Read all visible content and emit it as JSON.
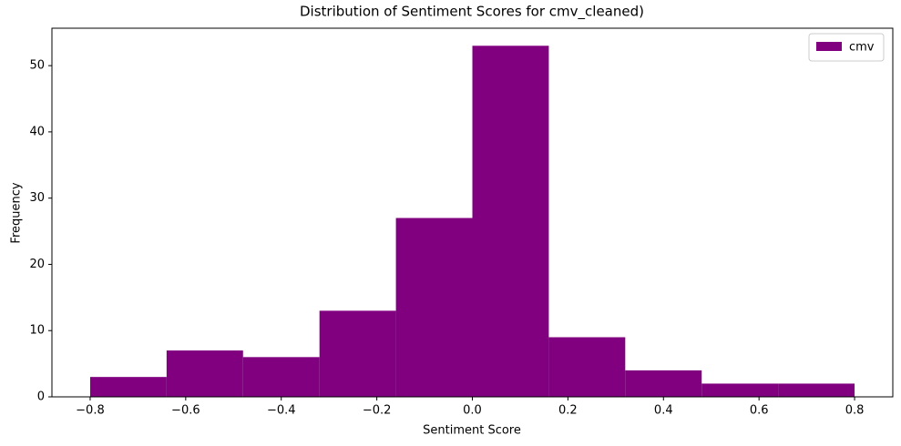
{
  "chart_data": {
    "type": "histogram",
    "title": "Distribution of Sentiment Scores for cmv_cleaned)",
    "xlabel": "Sentiment Score",
    "ylabel": "Frequency",
    "bins": [
      -0.8,
      -0.64,
      -0.48,
      -0.32,
      -0.16,
      0.0,
      0.16,
      0.32,
      0.48,
      0.64,
      0.8
    ],
    "series": [
      {
        "name": "cmv",
        "color": "#800080",
        "values": [
          3,
          7,
          6,
          13,
          27,
          53,
          9,
          4,
          2,
          2
        ]
      }
    ],
    "xlim": [
      -0.88,
      0.88
    ],
    "xticks": [
      {
        "value": -0.8,
        "label": "−0.8"
      },
      {
        "value": -0.6,
        "label": "−0.6"
      },
      {
        "value": -0.4,
        "label": "−0.4"
      },
      {
        "value": -0.2,
        "label": "−0.2"
      },
      {
        "value": 0.0,
        "label": "0.0"
      },
      0.2,
      0.4,
      0.6,
      0.8
    ],
    "ylim": [
      0,
      55.65
    ],
    "yticks": [
      0,
      10,
      20,
      30,
      40,
      50
    ],
    "legend": "upper right"
  }
}
